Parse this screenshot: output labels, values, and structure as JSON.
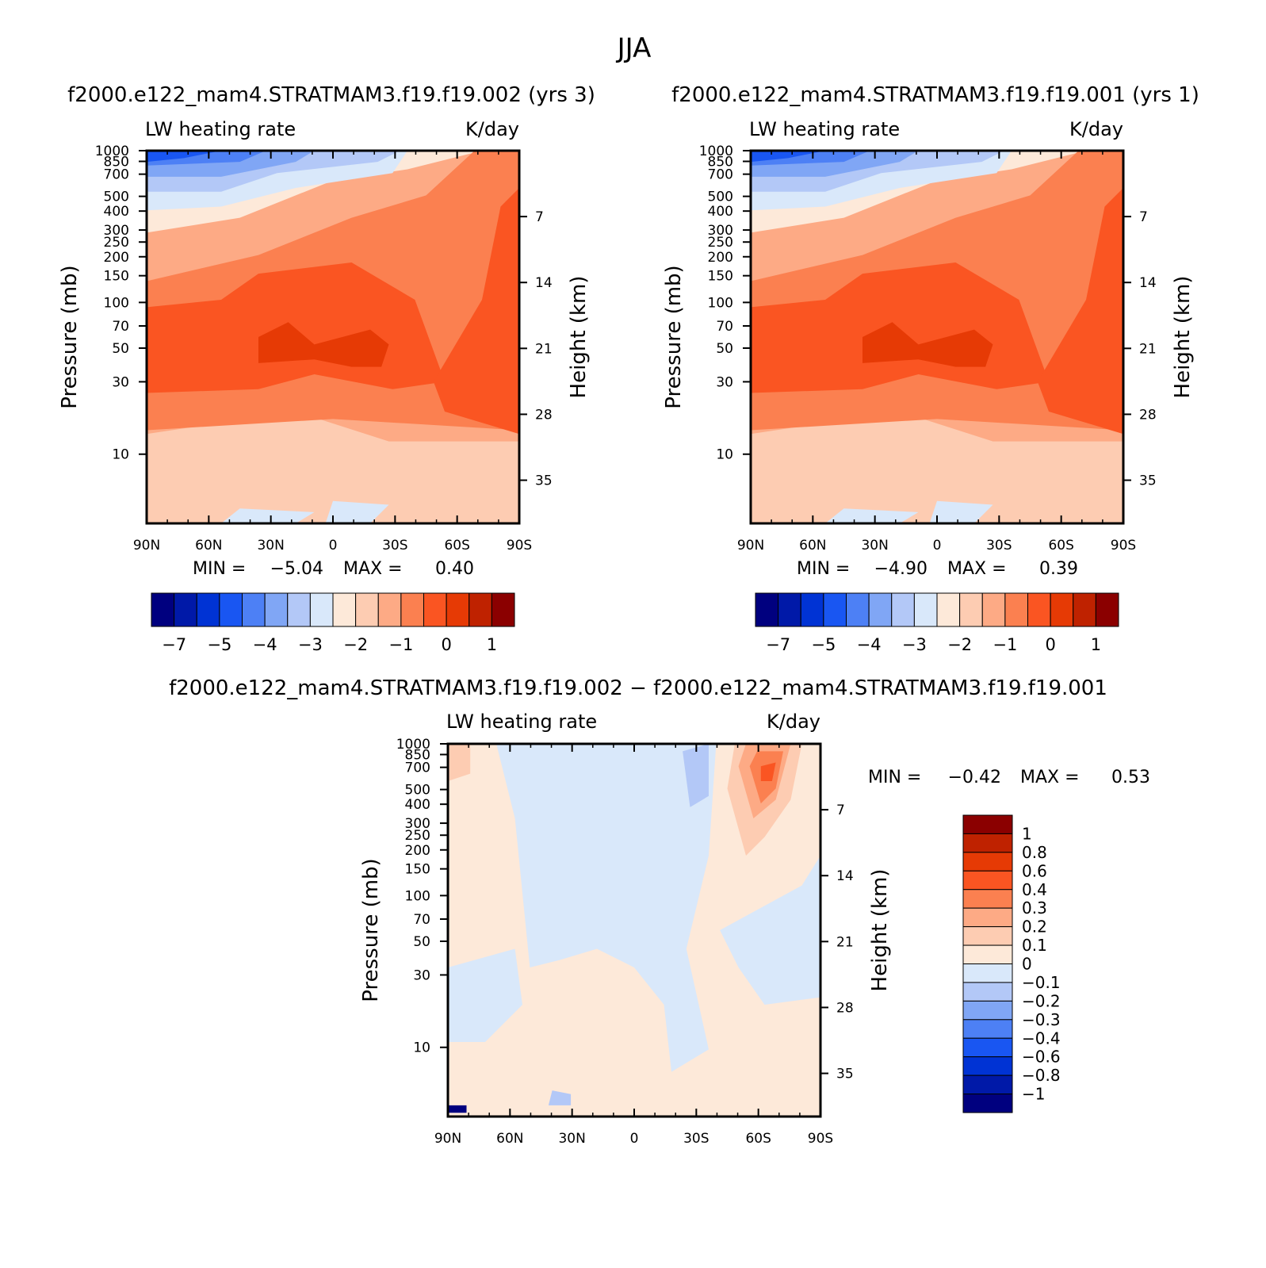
{
  "page_title": "JJA",
  "chart_data": [
    {
      "id": "p1",
      "type": "heatmap",
      "case_title": "f2000.e122_mam4.STRATMAM3.f19.f19.002 (yrs 3)",
      "variable": "LW heating rate",
      "units": "K/day",
      "ylabel": "Pressure (mb)",
      "ylabel_right": "Height (km)",
      "x_ticks": [
        "90N",
        "60N",
        "30N",
        "0",
        "30S",
        "60S",
        "90S"
      ],
      "y_ticks": [
        "10",
        "30",
        "50",
        "70",
        "100",
        "150",
        "200",
        "250",
        "300",
        "400",
        "500",
        "700",
        "850",
        "1000"
      ],
      "y_ticks_right": [
        "35",
        "28",
        "21",
        "14",
        "7"
      ],
      "ylim_mb": [
        1000,
        3.5
      ],
      "min_label": "MIN =",
      "min_value": "−5.04",
      "max_label": "MAX =",
      "max_value": "0.40",
      "colorbar_labels": [
        "−7",
        "−5",
        "−4",
        "−3",
        "−2",
        "−1",
        "0",
        "1"
      ],
      "colorbar_colors": [
        "#00007f",
        "#0019a8",
        "#0033d4",
        "#1956f2",
        "#4d80f5",
        "#80a6f5",
        "#b3c8f7",
        "#d9e8fa",
        "#fde9d9",
        "#fdccb2",
        "#fdaa85",
        "#fb8050",
        "#fa5522",
        "#e63a05",
        "#bf2200",
        "#8b0000"
      ]
    },
    {
      "id": "p2",
      "type": "heatmap",
      "case_title": "f2000.e122_mam4.STRATMAM3.f19.f19.001 (yrs 1)",
      "variable": "LW heating rate",
      "units": "K/day",
      "ylabel": "Pressure (mb)",
      "ylabel_right": "Height (km)",
      "x_ticks": [
        "90N",
        "60N",
        "30N",
        "0",
        "30S",
        "60S",
        "90S"
      ],
      "y_ticks": [
        "10",
        "30",
        "50",
        "70",
        "100",
        "150",
        "200",
        "250",
        "300",
        "400",
        "500",
        "700",
        "850",
        "1000"
      ],
      "y_ticks_right": [
        "35",
        "28",
        "21",
        "14",
        "7"
      ],
      "ylim_mb": [
        1000,
        3.5
      ],
      "min_label": "MIN =",
      "min_value": "−4.90",
      "max_label": "MAX =",
      "max_value": "0.39",
      "colorbar_labels": [
        "−7",
        "−5",
        "−4",
        "−3",
        "−2",
        "−1",
        "0",
        "1"
      ],
      "colorbar_colors": [
        "#00007f",
        "#0019a8",
        "#0033d4",
        "#1956f2",
        "#4d80f5",
        "#80a6f5",
        "#b3c8f7",
        "#d9e8fa",
        "#fde9d9",
        "#fdccb2",
        "#fdaa85",
        "#fb8050",
        "#fa5522",
        "#e63a05",
        "#bf2200",
        "#8b0000"
      ]
    },
    {
      "id": "p3",
      "type": "heatmap",
      "case_title": "f2000.e122_mam4.STRATMAM3.f19.f19.002 − f2000.e122_mam4.STRATMAM3.f19.f19.001",
      "variable": "LW heating rate",
      "units": "K/day",
      "ylabel": "Pressure (mb)",
      "ylabel_right": "Height (km)",
      "x_ticks": [
        "90N",
        "60N",
        "30N",
        "0",
        "30S",
        "60S",
        "90S"
      ],
      "y_ticks": [
        "10",
        "30",
        "50",
        "70",
        "100",
        "150",
        "200",
        "250",
        "300",
        "400",
        "500",
        "700",
        "850",
        "1000"
      ],
      "y_ticks_right": [
        "35",
        "28",
        "21",
        "14",
        "7"
      ],
      "ylim_mb": [
        1000,
        3.5
      ],
      "min_label": "MIN =",
      "min_value": "−0.42",
      "max_label": "MAX =",
      "max_value": "0.53",
      "colorbar_labels": [
        "1",
        "0.8",
        "0.6",
        "0.4",
        "0.3",
        "0.2",
        "0.1",
        "0",
        "−0.1",
        "−0.2",
        "−0.3",
        "−0.4",
        "−0.6",
        "−0.8",
        "−1"
      ],
      "colorbar_colors": [
        "#8b0000",
        "#bf2200",
        "#e63a05",
        "#fa5522",
        "#fb8050",
        "#fdaa85",
        "#fdccb2",
        "#fde9d9",
        "#d9e8fa",
        "#b3c8f7",
        "#80a6f5",
        "#4d80f5",
        "#1956f2",
        "#0033d4",
        "#0019a8",
        "#00007f"
      ]
    }
  ]
}
